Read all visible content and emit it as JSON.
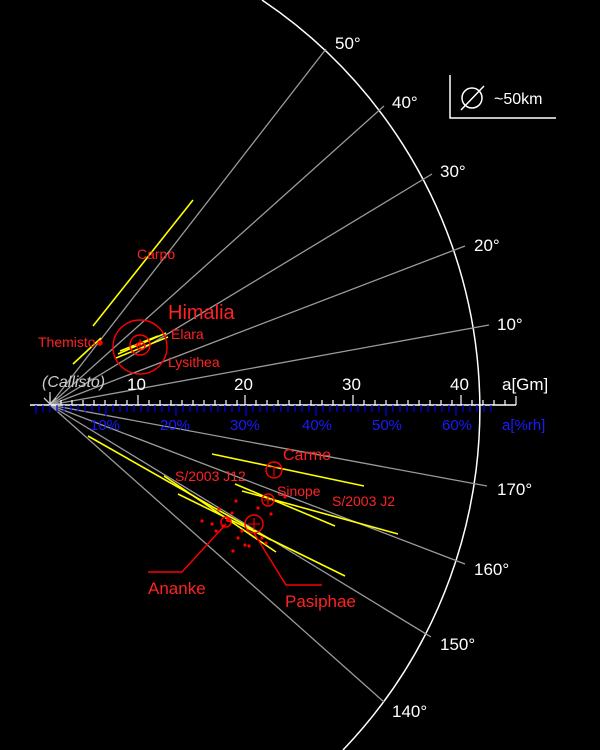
{
  "colors": {
    "background": "#000000",
    "frame": "#ffffff",
    "angle_ray": "#9a9a9a",
    "semi_major_axis": "#ffffff",
    "hill_axis": "#0000ff",
    "hill_label": "#2222ff",
    "moon": "#ff0000",
    "orbit_range": "#ffff00",
    "callisto": "#cccccc"
  },
  "inclination_labels": {
    "prograde": [
      "10°",
      "20°",
      "30°",
      "40°",
      "50°"
    ],
    "retrograde": [
      "170°",
      "160°",
      "150°",
      "140°"
    ]
  },
  "a_axis": {
    "ticks": [
      "10",
      "20",
      "30",
      "40"
    ],
    "unit": "a[Gm]"
  },
  "hill_axis": {
    "ticks": [
      "10%",
      "20%",
      "30%",
      "40%",
      "50%",
      "60%"
    ],
    "unit": "a[%rh]"
  },
  "reference": {
    "callisto_label": "(Callisto)"
  },
  "legend": {
    "scale_icon": "diameter-icon",
    "scale_text": "~50km"
  },
  "moons": {
    "himalia": "Himalia",
    "elara": "Elara",
    "lysithea": "Lysithea",
    "themisto": "Themisto",
    "carpo": "Carpo",
    "carme": "Carme",
    "sinope": "Sinope",
    "s2003j12": "S/2003 J12",
    "s2003j2": "S/2003 J2",
    "ananke": "Ananke",
    "pasiphae": "Pasiphae"
  }
}
